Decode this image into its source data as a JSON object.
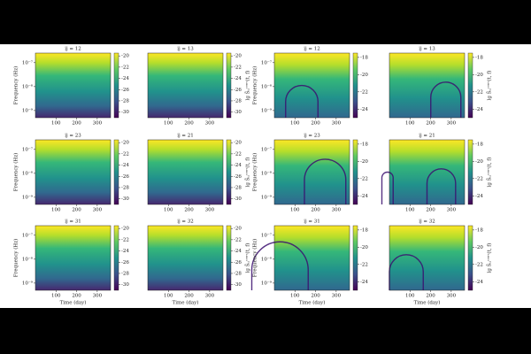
{
  "chart_data": [
    {
      "type": "heatmap",
      "title": "ij = 12",
      "ylabel": "Frequency (Hz)",
      "xlim": [
        0,
        365
      ],
      "xticks": [
        100,
        200,
        300
      ],
      "ylim": [
        -9.3,
        -6.6
      ],
      "log_y": true,
      "yticks": [
        {
          "value": -7,
          "label": "10⁻⁷"
        },
        {
          "value": -8,
          "label": "10⁻⁸"
        },
        {
          "value": -9,
          "label": "10⁻⁹"
        }
      ],
      "clim": [
        -31,
        -19.5
      ],
      "cticks": [
        -20,
        -22,
        -24,
        -26,
        -28,
        -30
      ],
      "colormap": "viridis"
    },
    {
      "type": "heatmap",
      "title": "ij = 13",
      "clabel": "lg S̃ᵢⱼᶜᵒⁿᵛ(t, f)",
      "xlim": [
        0,
        365
      ],
      "xticks": [
        100,
        200,
        300
      ],
      "ylim": [
        -9.3,
        -6.6
      ],
      "log_y": true,
      "yticks": [],
      "clim": [
        -31,
        -19.5
      ],
      "cticks": [
        -20,
        -22,
        -24,
        -26,
        -28,
        -30
      ],
      "colormap": "viridis"
    },
    {
      "type": "heatmap",
      "title": "ij = 23",
      "ylabel": "Frequency (Hz)",
      "xlim": [
        0,
        365
      ],
      "xticks": [
        100,
        200,
        300
      ],
      "ylim": [
        -9.3,
        -6.6
      ],
      "log_y": true,
      "yticks": [
        {
          "value": -7,
          "label": "10⁻⁷"
        },
        {
          "value": -8,
          "label": "10⁻⁸"
        },
        {
          "value": -9,
          "label": "10⁻⁹"
        }
      ],
      "clim": [
        -31,
        -19.5
      ],
      "cticks": [
        -20,
        -22,
        -24,
        -26,
        -28,
        -30
      ],
      "colormap": "viridis"
    },
    {
      "type": "heatmap",
      "title": "ij = 21",
      "clabel": "lg S̃ᵢⱼᶜᵒⁿᵛ(t, f)",
      "xlim": [
        0,
        365
      ],
      "xticks": [
        100,
        200,
        300
      ],
      "ylim": [
        -9.3,
        -6.6
      ],
      "log_y": true,
      "yticks": [],
      "clim": [
        -31,
        -19.5
      ],
      "cticks": [
        -20,
        -22,
        -24,
        -26,
        -28,
        -30
      ],
      "colormap": "viridis"
    },
    {
      "type": "heatmap",
      "title": "ij = 31",
      "ylabel": "Frequency (Hz)",
      "xlabel": "Time (day)",
      "xlim": [
        0,
        365
      ],
      "xticks": [
        100,
        200,
        300
      ],
      "ylim": [
        -9.3,
        -6.6
      ],
      "log_y": true,
      "yticks": [
        {
          "value": -7,
          "label": "10⁻⁷"
        },
        {
          "value": -8,
          "label": "10⁻⁸"
        },
        {
          "value": -9,
          "label": "10⁻⁹"
        }
      ],
      "clim": [
        -31,
        -19.5
      ],
      "cticks": [
        -20,
        -22,
        -24,
        -26,
        -28,
        -30
      ],
      "colormap": "viridis"
    },
    {
      "type": "heatmap",
      "title": "ij = 32",
      "xlabel": "Time (day)",
      "clabel": "lg S̃ᵢⱼᶜᵒⁿᵛ(t, f)",
      "xlim": [
        0,
        365
      ],
      "xticks": [
        100,
        200,
        300
      ],
      "ylim": [
        -9.3,
        -6.6
      ],
      "log_y": true,
      "yticks": [],
      "clim": [
        -31,
        -19.5
      ],
      "cticks": [
        -20,
        -22,
        -24,
        -26,
        -28,
        -30
      ],
      "colormap": "viridis"
    },
    {
      "type": "heatmap",
      "title": "ij = 12",
      "ylabel": "Frequency (Hz)",
      "xlim": [
        0,
        365
      ],
      "xticks": [
        100,
        200,
        300
      ],
      "ylim": [
        -9.3,
        -6.6
      ],
      "log_y": true,
      "yticks": [
        {
          "value": -7,
          "label": "10⁻⁷"
        },
        {
          "value": -8,
          "label": "10⁻⁸"
        },
        {
          "value": -9,
          "label": "10⁻⁹"
        }
      ],
      "clim": [
        -25,
        -17.5
      ],
      "cticks": [
        -18,
        -20,
        -22,
        -24
      ],
      "colormap": "viridis"
    },
    {
      "type": "heatmap",
      "title": "ij = 13",
      "clabel": "lg S̃ᵢⱼᶜᵒⁿᵛ(t, f)",
      "xlim": [
        0,
        365
      ],
      "xticks": [
        100,
        200,
        300
      ],
      "ylim": [
        -9.3,
        -6.6
      ],
      "log_y": true,
      "yticks": [],
      "clim": [
        -25,
        -17.5
      ],
      "cticks": [
        -18,
        -20,
        -22,
        -24
      ],
      "colormap": "viridis"
    },
    {
      "type": "heatmap",
      "title": "ij = 23",
      "ylabel": "Frequency (Hz)",
      "xlim": [
        0,
        365
      ],
      "xticks": [
        100,
        200,
        300
      ],
      "ylim": [
        -9.3,
        -6.6
      ],
      "log_y": true,
      "yticks": [
        {
          "value": -7,
          "label": "10⁻⁷"
        },
        {
          "value": -8,
          "label": "10⁻⁸"
        },
        {
          "value": -9,
          "label": "10⁻⁹"
        }
      ],
      "clim": [
        -25,
        -17.5
      ],
      "cticks": [
        -18,
        -20,
        -22,
        -24
      ],
      "colormap": "viridis"
    },
    {
      "type": "heatmap",
      "title": "ij = 21",
      "clabel": "lg S̃ᵢⱼᶜᵒⁿᵛ(t, f)",
      "xlim": [
        0,
        365
      ],
      "xticks": [
        100,
        200,
        300
      ],
      "ylim": [
        -9.3,
        -6.6
      ],
      "log_y": true,
      "yticks": [],
      "clim": [
        -25,
        -17.5
      ],
      "cticks": [
        -18,
        -20,
        -22,
        -24
      ],
      "colormap": "viridis"
    },
    {
      "type": "heatmap",
      "title": "ij = 31",
      "ylabel": "Frequency (Hz)",
      "xlabel": "Time (day)",
      "xlim": [
        0,
        365
      ],
      "xticks": [
        100,
        200,
        300
      ],
      "ylim": [
        -9.3,
        -6.6
      ],
      "log_y": true,
      "yticks": [
        {
          "value": -7,
          "label": "10⁻⁷"
        },
        {
          "value": -8,
          "label": "10⁻⁸"
        },
        {
          "value": -9,
          "label": "10⁻⁹"
        }
      ],
      "clim": [
        -25,
        -17.5
      ],
      "cticks": [
        -18,
        -20,
        -22,
        -24
      ],
      "colormap": "viridis"
    },
    {
      "type": "heatmap",
      "title": "ij = 32",
      "xlabel": "Time (day)",
      "clabel": "lg S̃ᵢⱼᶜᵒⁿᵛ(t, f)",
      "xlim": [
        0,
        365
      ],
      "xticks": [
        100,
        200,
        300
      ],
      "ylim": [
        -9.3,
        -6.6
      ],
      "log_y": true,
      "yticks": [],
      "clim": [
        -25,
        -17.5
      ],
      "cticks": [
        -18,
        -20,
        -22,
        -24
      ],
      "colormap": "viridis"
    }
  ]
}
